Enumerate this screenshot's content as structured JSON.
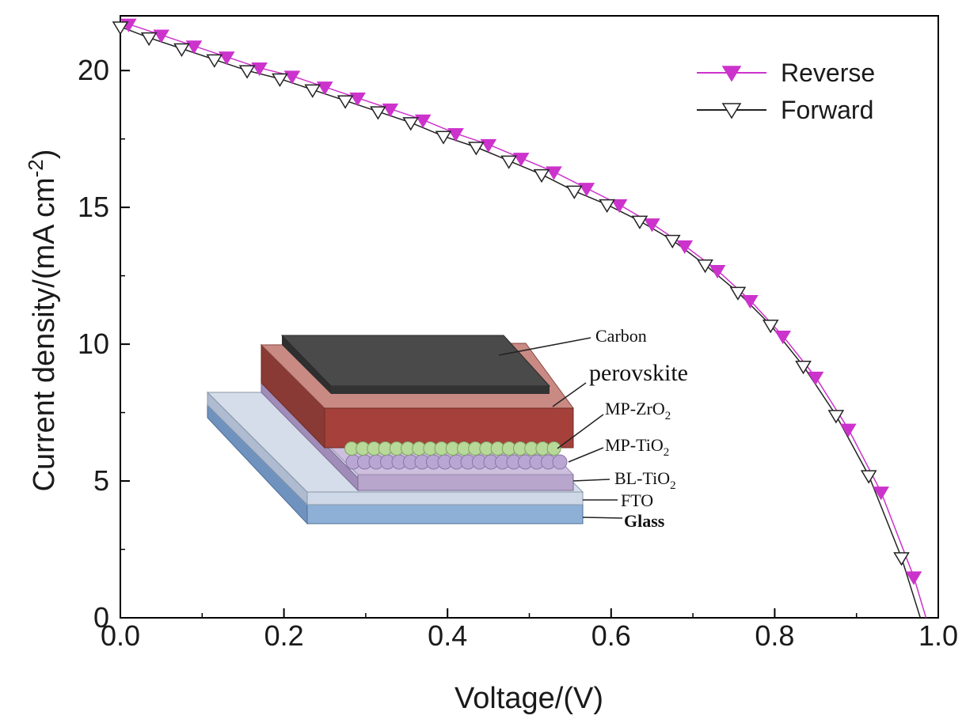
{
  "chart_data": {
    "type": "line",
    "xlabel": "Voltage/(V)",
    "ylabel": "Current density/(mA cm",
    "ylabel_sup": "-2",
    "ylabel_close": ")",
    "xlim": [
      0.0,
      1.0
    ],
    "ylim": [
      0,
      22
    ],
    "x_ticks": [
      "0.0",
      "0.2",
      "0.4",
      "0.6",
      "0.8",
      "1.0"
    ],
    "y_ticks": [
      "0",
      "5",
      "10",
      "15",
      "20"
    ],
    "legend_position": "top-right",
    "series": [
      {
        "name": "Reverse",
        "color": "#cc33cc",
        "marker": "filled-down-triangle",
        "x": [
          0.01,
          0.05,
          0.09,
          0.13,
          0.17,
          0.21,
          0.25,
          0.29,
          0.33,
          0.37,
          0.41,
          0.45,
          0.49,
          0.53,
          0.57,
          0.61,
          0.65,
          0.69,
          0.73,
          0.77,
          0.81,
          0.85,
          0.89,
          0.93,
          0.97,
          0.985
        ],
        "y": [
          21.7,
          21.3,
          20.9,
          20.5,
          20.1,
          19.8,
          19.4,
          19.0,
          18.6,
          18.2,
          17.7,
          17.3,
          16.8,
          16.3,
          15.7,
          15.1,
          14.4,
          13.6,
          12.7,
          11.6,
          10.3,
          8.8,
          6.9,
          4.6,
          1.5,
          0.0
        ]
      },
      {
        "name": "Forward",
        "color": "#222222",
        "marker": "hollow-down-triangle",
        "x": [
          0.0,
          0.035,
          0.075,
          0.115,
          0.155,
          0.195,
          0.235,
          0.275,
          0.315,
          0.355,
          0.395,
          0.435,
          0.475,
          0.515,
          0.555,
          0.595,
          0.635,
          0.675,
          0.715,
          0.755,
          0.795,
          0.835,
          0.875,
          0.915,
          0.955,
          0.978
        ],
        "y": [
          21.6,
          21.2,
          20.8,
          20.4,
          20.0,
          19.7,
          19.3,
          18.9,
          18.5,
          18.1,
          17.6,
          17.2,
          16.7,
          16.2,
          15.6,
          15.1,
          14.5,
          13.8,
          12.9,
          11.9,
          10.7,
          9.2,
          7.4,
          5.2,
          2.2,
          0.0
        ]
      }
    ]
  },
  "inset": {
    "labels": {
      "carbon": "Carbon",
      "perovskite": "perovskite",
      "mp_zro2": "MP-ZrO",
      "mp_zro2_sub": "2",
      "mp_tio2": "MP-TiO",
      "mp_tio2_sub": "2",
      "bl_tio2": "BL-TiO",
      "bl_tio2_sub": "2",
      "fto": "FTO",
      "glass": "Glass"
    },
    "colors": {
      "carbon": "#4a4a4a",
      "perovskite": "#a5403b",
      "zro2_beads": "#b8d99a",
      "tio2_beads": "#b9a6d3",
      "bl_tio2": "#b8a6cc",
      "fto": "#cfd8e6",
      "glass": "#8fb0d6"
    }
  }
}
